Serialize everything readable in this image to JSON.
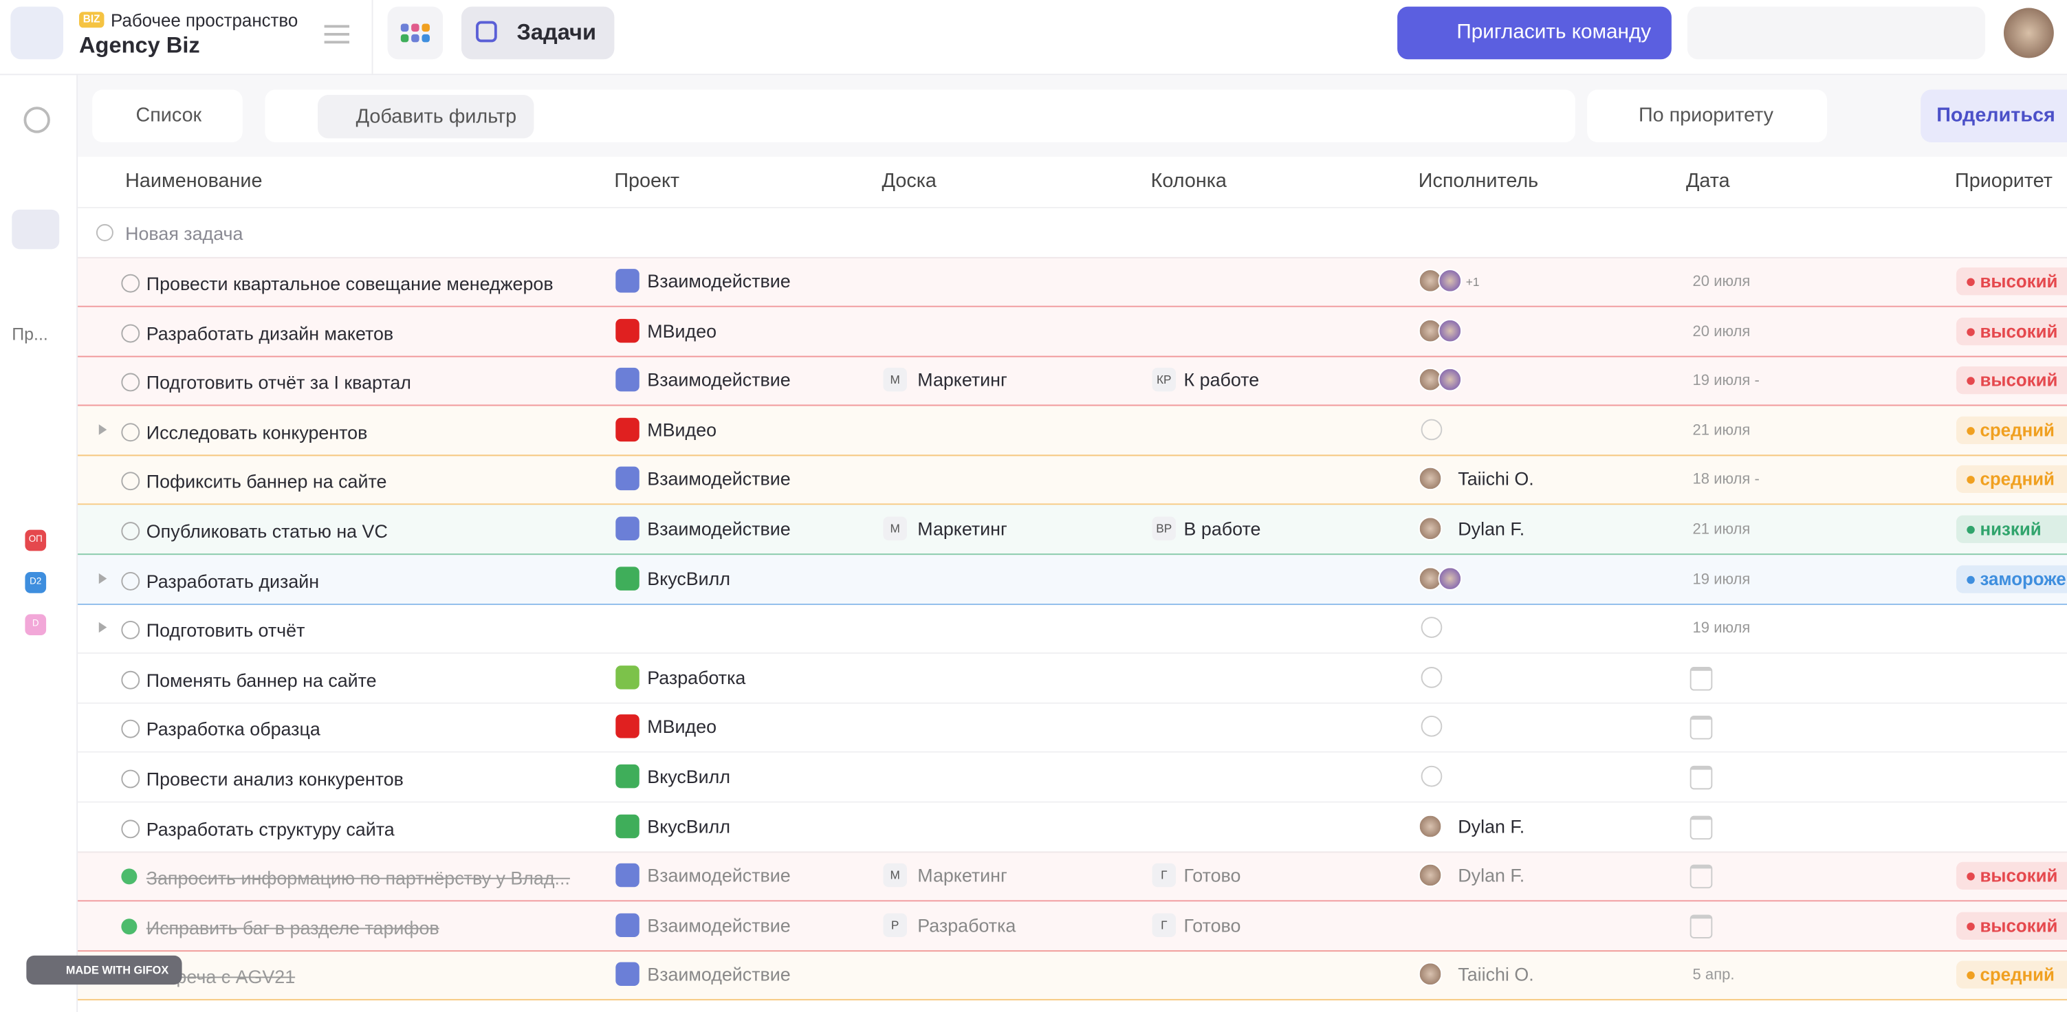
{
  "header": {
    "workspace_badge": "BIZ",
    "workspace_label": "Рабочее пространство",
    "workspace_name": "Agency Biz",
    "breadcrumb": "Задачи",
    "invite_button": "Пригласить команду"
  },
  "toolbar": {
    "view": "Список",
    "add_filter": "Добавить фильтр",
    "sort": "По приоритету",
    "share": "Поделиться"
  },
  "sidebar": {
    "section": "Пр...",
    "badges": [
      "ОП",
      "D2",
      "D"
    ]
  },
  "columns": [
    "Наименование",
    "Проект",
    "Доска",
    "Колонка",
    "Исполнитель",
    "Дата",
    "Приоритет"
  ],
  "new_task": "Новая задача",
  "rows": [
    {
      "name": "Провести квартальное совещание менеджеров",
      "project": "Взаимодействие",
      "project_color": "#6b7fd7",
      "avatars": 2,
      "assignee_extra": "+1",
      "date": "20 июля",
      "priority": "высокий",
      "color": "#e5484d"
    },
    {
      "name": "Разработать дизайн макетов",
      "project": "МВидео",
      "project_color": "#e02020",
      "avatars": 2,
      "date": "20 июля",
      "priority": "высокий",
      "color": "#e5484d"
    },
    {
      "name": "Подготовить отчёт за I квартал",
      "project": "Взаимодействие",
      "project_color": "#6b7fd7",
      "board_badge": "М",
      "board": "Маркетинг",
      "column_badge": "КР",
      "column": "К работе",
      "avatars": 2,
      "date": "19 июля -",
      "priority": "высокий",
      "color": "#e5484d"
    },
    {
      "name": "Исследовать конкурентов",
      "expandable": true,
      "project": "МВидео",
      "project_color": "#e02020",
      "assignee_empty": true,
      "date": "21 июля",
      "priority": "средний",
      "color": "#f0a020"
    },
    {
      "name": "Пофиксить баннер на сайте",
      "project": "Взаимодействие",
      "project_color": "#6b7fd7",
      "avatars": 1,
      "assignee": "Taiichi O.",
      "date": "18 июля -",
      "priority": "средний",
      "color": "#f0a020"
    },
    {
      "name": "Опубликовать статью на VC",
      "project": "Взаимодействие",
      "project_color": "#6b7fd7",
      "board_badge": "М",
      "board": "Маркетинг",
      "column_badge": "ВР",
      "column": "В работе",
      "avatars": 1,
      "assignee": "Dylan F.",
      "date": "21 июля",
      "priority": "низкий",
      "color": "#30a46c"
    },
    {
      "name": "Разработать дизайн",
      "expandable": true,
      "project": "ВкусВилл",
      "project_color": "#3fae5a",
      "avatars": 2,
      "date": "19 июля",
      "priority": "заморожен",
      "color": "#3e8ede"
    },
    {
      "name": "Подготовить отчёт",
      "expandable": true,
      "assignee_empty": true,
      "date": "19 июля"
    },
    {
      "name": "Поменять баннер на сайте",
      "project": "Разработка",
      "project_color": "#7cc24a",
      "assignee_empty": true
    },
    {
      "name": "Разработка образца",
      "project": "МВидео",
      "project_color": "#e02020",
      "assignee_empty": true
    },
    {
      "name": "Провести анализ конкурентов",
      "project": "ВкусВилл",
      "project_color": "#3fae5a",
      "assignee_empty": true
    },
    {
      "name": "Разработать структуру сайта",
      "project": "ВкусВилл",
      "project_color": "#3fae5a",
      "avatars": 1,
      "assignee": "Dylan F."
    },
    {
      "name": "Запросить информацию по партнёрству у Влад...",
      "done": true,
      "project": "Взаимодействие",
      "project_color": "#6b7fd7",
      "board_badge": "М",
      "board": "Маркетинг",
      "column_badge": "Г",
      "column": "Готово",
      "avatars": 1,
      "assignee": "Dylan F.",
      "priority": "высокий",
      "color": "#e5484d"
    },
    {
      "name": "Исправить баг в разделе тарифов",
      "done": true,
      "project": "Взаимодействие",
      "project_color": "#6b7fd7",
      "board_badge": "Р",
      "board": "Разработка",
      "column_badge": "Г",
      "column": "Готово",
      "priority": "высокий",
      "color": "#e5484d"
    },
    {
      "name": "Встреча с AGV21",
      "done": true,
      "project": "Взаимодействие",
      "project_color": "#6b7fd7",
      "avatars": 1,
      "assignee": "Taiichi O.",
      "date": "5 апр.",
      "priority": "средний",
      "color": "#f0a020"
    }
  ],
  "watermark": "MADE WITH GIFOX"
}
